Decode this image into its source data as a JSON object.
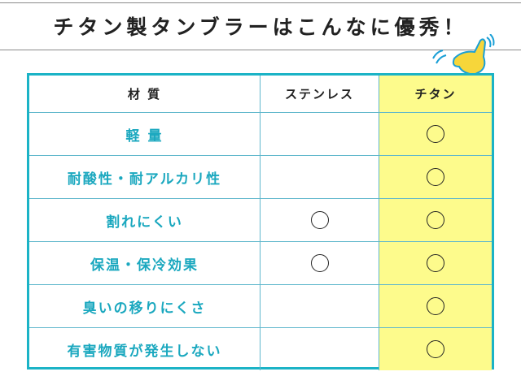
{
  "title": "チタン製タンブラーはこんなに優秀！",
  "table": {
    "headers": [
      "材 質",
      "ステンレス",
      "チタン"
    ],
    "rows": [
      {
        "label": "軽 量",
        "stainless": false,
        "titanium": true
      },
      {
        "label": "耐酸性・耐アルカリ性",
        "stainless": false,
        "titanium": true
      },
      {
        "label": "割れにくい",
        "stainless": true,
        "titanium": true
      },
      {
        "label": "保温・保冷効果",
        "stainless": true,
        "titanium": true
      },
      {
        "label": "臭いの移りにくさ",
        "stainless": false,
        "titanium": true
      },
      {
        "label": "有害物質が発生しない",
        "stainless": false,
        "titanium": true
      }
    ],
    "mark": "〇"
  },
  "colors": {
    "accent": "#1bb3c6",
    "highlight": "#fdfb8c",
    "label_text": "#1ba8bf"
  }
}
